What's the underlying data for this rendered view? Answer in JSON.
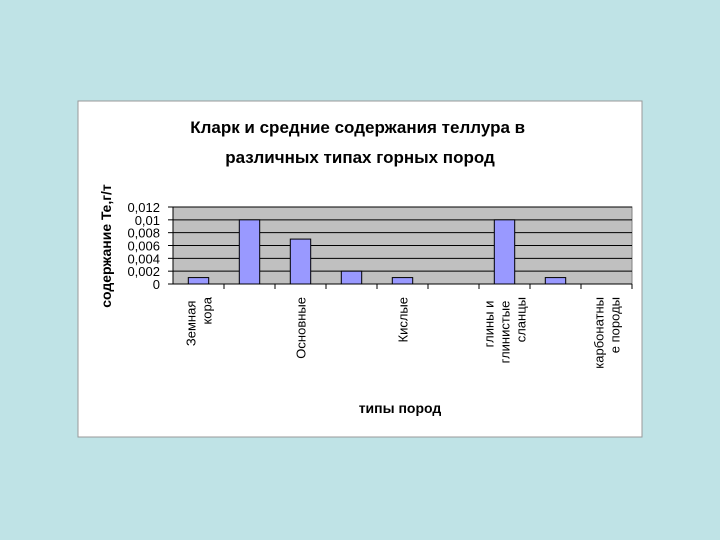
{
  "chart_data": {
    "type": "bar",
    "title": "Кларк и средние содержания теллура в различных типах горных пород",
    "x_label": "типы пород",
    "y_label": "содержание Te,г/т",
    "categories": [
      "Земная кора",
      null,
      "Основные",
      null,
      "Кислые",
      null,
      "глины и глинистые сланцы",
      null,
      "карбонатные породы"
    ],
    "values": [
      0.001,
      0.01,
      0.007,
      0.002,
      0.001,
      0,
      0.01,
      0.001,
      0
    ],
    "color": "#9999ff",
    "ylim": [
      0,
      0.012
    ],
    "yticks": [
      0,
      {
        "value": 0.002,
        "label": "0,002"
      },
      {
        "value": 0.004,
        "label": "0,004"
      },
      {
        "value": 0.006,
        "label": "0,006"
      },
      {
        "value": 0.008,
        "label": "0,008"
      },
      {
        "value": 0.01,
        "label": "0,01"
      },
      {
        "value": 0.012,
        "label": "0,012"
      }
    ],
    "grid": true
  }
}
